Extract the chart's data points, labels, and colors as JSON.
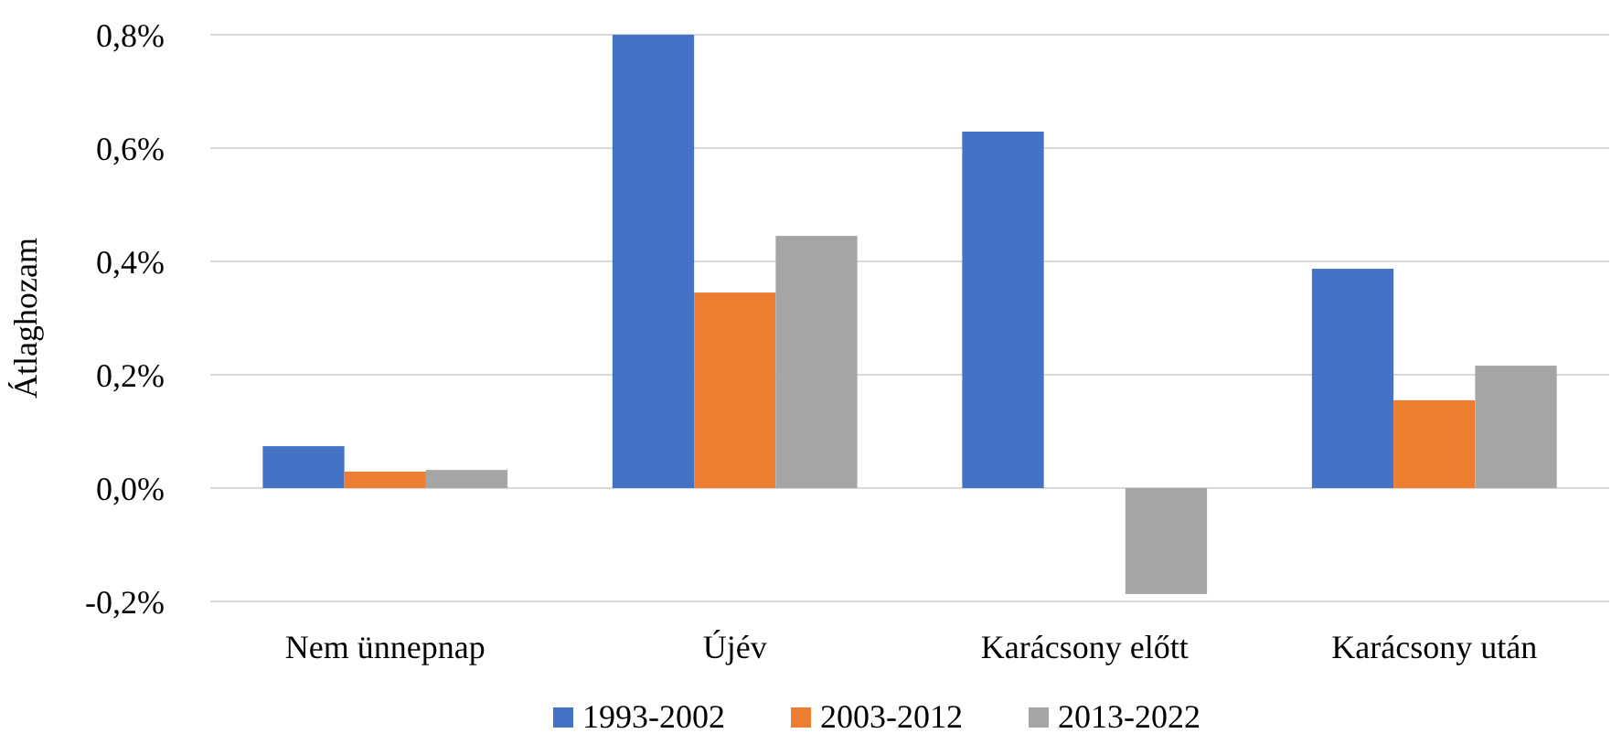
{
  "chart_data": {
    "type": "bar",
    "ylabel": "Átlaghozam",
    "categories": [
      "Nem ünnepnap",
      "Újév",
      "Karácsony előtt",
      "Karácsony után"
    ],
    "series": [
      {
        "name": "1993-2002",
        "color": "#4472c4",
        "values": [
          0.074,
          0.8,
          0.629,
          0.387
        ]
      },
      {
        "name": "2003-2012",
        "color": "#ed7d31",
        "values": [
          0.029,
          0.345,
          0,
          0.155
        ]
      },
      {
        "name": "2013-2022",
        "color": "#a5a5a5",
        "values": [
          0.032,
          0.445,
          -0.187,
          0.216
        ]
      }
    ],
    "ylim": [
      -0.2,
      0.8
    ],
    "yticks": [
      {
        "value": -0.2,
        "label": "-0,2%"
      },
      {
        "value": 0,
        "label": "0,0%"
      },
      {
        "value": 0.2,
        "label": "0,2%"
      },
      {
        "value": 0.4,
        "label": "0,4%"
      },
      {
        "value": 0.6,
        "label": "0,6%"
      },
      {
        "value": 0.8,
        "label": "0,8%"
      }
    ],
    "grid": "y",
    "legend": "bottom"
  }
}
